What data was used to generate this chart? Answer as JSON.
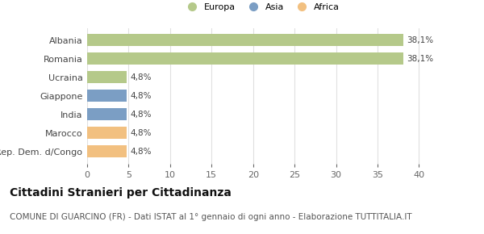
{
  "categories": [
    "Albania",
    "Romania",
    "Ucraina",
    "Giappone",
    "India",
    "Marocco",
    "Rep. Dem. d/Congo"
  ],
  "values": [
    38.1,
    38.1,
    4.8,
    4.8,
    4.8,
    4.8,
    4.8
  ],
  "colors": [
    "#b5c98a",
    "#b5c98a",
    "#b5c98a",
    "#7b9ec4",
    "#7b9ec4",
    "#f2c080",
    "#f2c080"
  ],
  "labels": [
    "38,1%",
    "38,1%",
    "4,8%",
    "4,8%",
    "4,8%",
    "4,8%",
    "4,8%"
  ],
  "xlim": [
    0,
    42
  ],
  "xticks": [
    0,
    5,
    10,
    15,
    20,
    25,
    30,
    35,
    40
  ],
  "legend_items": [
    {
      "label": "Europa",
      "color": "#b5c98a"
    },
    {
      "label": "Asia",
      "color": "#7b9ec4"
    },
    {
      "label": "Africa",
      "color": "#f2c080"
    }
  ],
  "title": "Cittadini Stranieri per Cittadinanza",
  "subtitle": "COMUNE DI GUARCINO (FR) - Dati ISTAT al 1° gennaio di ogni anno - Elaborazione TUTTITALIA.IT",
  "bg_color": "#ffffff",
  "grid_color": "#e0e0e0",
  "title_fontsize": 10,
  "subtitle_fontsize": 7.5,
  "label_fontsize": 7.5,
  "tick_fontsize": 8,
  "bar_height": 0.65
}
